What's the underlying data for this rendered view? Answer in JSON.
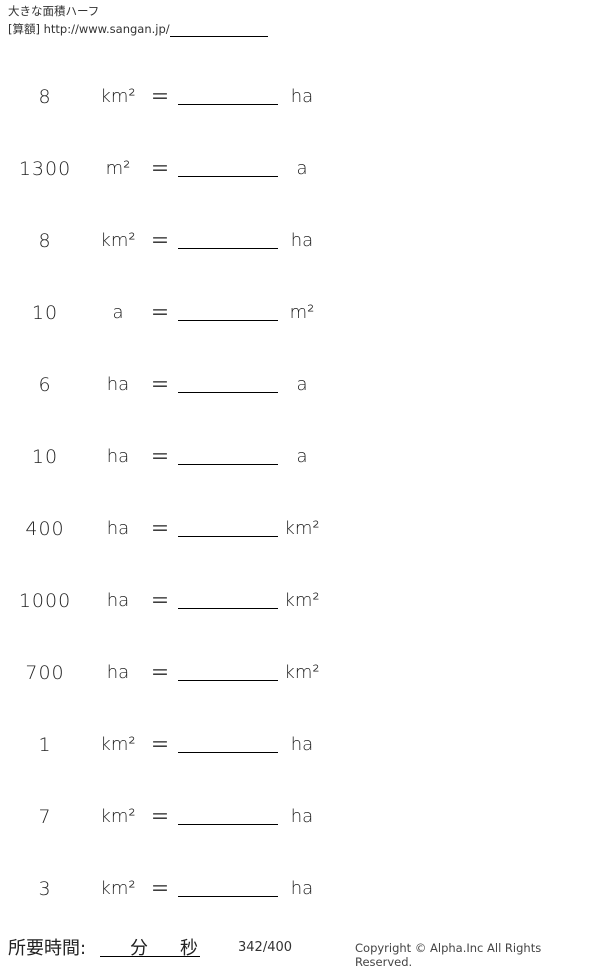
{
  "header": {
    "title": "大きな面積ハーフ",
    "source": "[算額] http://www.sangan.jp/"
  },
  "problems": [
    {
      "value": "8",
      "from": "km²",
      "eq": "＝",
      "to": "ha"
    },
    {
      "value": "1300",
      "from": "m²",
      "eq": "＝",
      "to": "a"
    },
    {
      "value": "8",
      "from": "km²",
      "eq": "＝",
      "to": "ha"
    },
    {
      "value": "10",
      "from": "a",
      "eq": "＝",
      "to": "m²"
    },
    {
      "value": "6",
      "from": "ha",
      "eq": "＝",
      "to": "a"
    },
    {
      "value": "10",
      "from": "ha",
      "eq": "＝",
      "to": "a"
    },
    {
      "value": "400",
      "from": "ha",
      "eq": "＝",
      "to": "km²"
    },
    {
      "value": "1000",
      "from": "ha",
      "eq": "＝",
      "to": "km²"
    },
    {
      "value": "700",
      "from": "ha",
      "eq": "＝",
      "to": "km²"
    },
    {
      "value": "1",
      "from": "km²",
      "eq": "＝",
      "to": "ha"
    },
    {
      "value": "7",
      "from": "km²",
      "eq": "＝",
      "to": "ha"
    },
    {
      "value": "3",
      "from": "km²",
      "eq": "＝",
      "to": "ha"
    }
  ],
  "footer": {
    "time_label": "所要時間:",
    "minutes": "分",
    "seconds": "秒",
    "page": "342/400",
    "copyright": "Copyright © Alpha.Inc All Rights Reserved."
  }
}
